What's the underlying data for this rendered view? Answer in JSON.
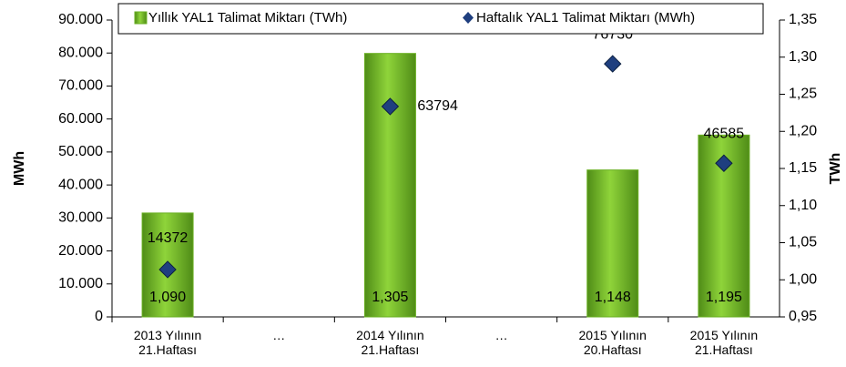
{
  "chart_data": {
    "type": "bar_scatter_combo",
    "categories": [
      "2013 Yılının\n21.Haftası",
      "…",
      "2014 Yılının\n21.Haftası",
      "…",
      "2015 Yılının\n20.Haftası",
      "2015 Yılının\n21.Haftası"
    ],
    "series": [
      {
        "name": "Yıllık YAL1 Talimat Miktarı (TWh)",
        "type": "bar",
        "axis": "y2",
        "color": "#6ab023",
        "values": [
          1.09,
          null,
          1.305,
          null,
          1.148,
          1.195
        ],
        "value_labels": [
          "1,090",
          null,
          "1,305",
          null,
          "1,148",
          "1,195"
        ]
      },
      {
        "name": "Haftalık YAL1 Talimat Miktarı (MWh)",
        "type": "scatter",
        "axis": "y",
        "color": "#1f3f7f",
        "values": [
          14372,
          null,
          63794,
          null,
          76730,
          46585
        ]
      }
    ],
    "ylabel": "MWh",
    "y2label": "TWh",
    "ylim": [
      0,
      90000
    ],
    "yticks": [
      0,
      {
        "value": 10000,
        "label": "10.000"
      },
      {
        "value": 20000,
        "label": "20.000"
      },
      {
        "value": 30000,
        "label": "30.000"
      },
      {
        "value": 40000,
        "label": "40.000"
      },
      {
        "value": 50000,
        "label": "50.000"
      },
      {
        "value": 60000,
        "label": "60.000"
      },
      {
        "value": 70000,
        "label": "70.000"
      },
      {
        "value": 80000,
        "label": "80.000"
      },
      {
        "value": 90000,
        "label": "90.000"
      }
    ],
    "y2lim": [
      0.95,
      1.35
    ],
    "y2ticks": [
      {
        "value": 0.95,
        "label": "0,95"
      },
      {
        "value": 1.0,
        "label": "1,00"
      },
      {
        "value": 1.05,
        "label": "1,05"
      },
      {
        "value": 1.1,
        "label": "1,10"
      },
      {
        "value": 1.15,
        "label": "1,15"
      },
      {
        "value": 1.2,
        "label": "1,20"
      },
      {
        "value": 1.25,
        "label": "1,25"
      },
      {
        "value": 1.3,
        "label": "1,30"
      },
      {
        "value": 1.35,
        "label": "1,35"
      }
    ],
    "legend": "top"
  }
}
